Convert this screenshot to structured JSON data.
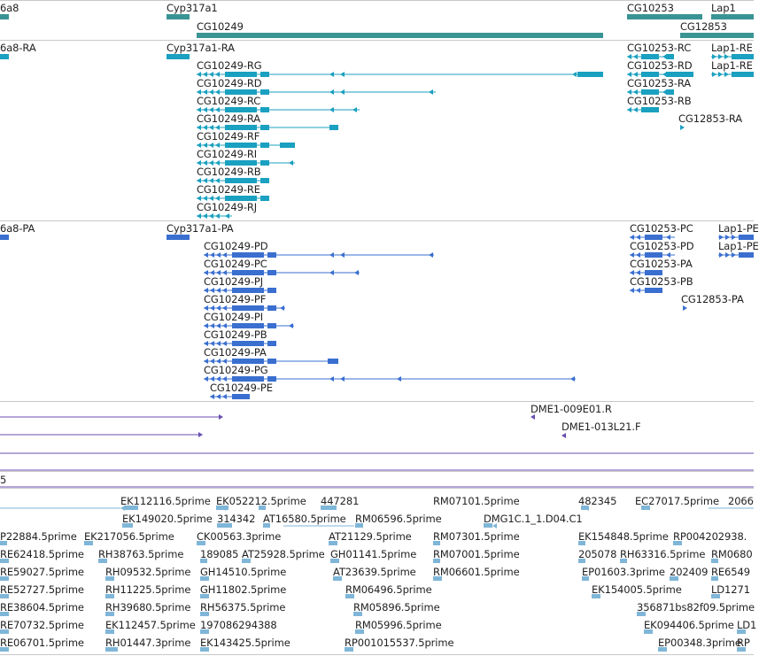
{
  "colors": {
    "gene": "#3a9494",
    "transcript": "#1aa0c0",
    "protein": "#3a6fd0",
    "probe": "#6a4fb0",
    "est": "#7fb6d8",
    "separator": "#c8c8c8"
  },
  "tracks": {
    "genes": {
      "labels": [
        {
          "id": "g-6a8",
          "text": "6a8"
        },
        {
          "id": "g-cyp317a1",
          "text": "Cyp317a1"
        },
        {
          "id": "g-cg10253",
          "text": "CG10253"
        },
        {
          "id": "g-lap1",
          "text": "Lap1"
        },
        {
          "id": "g-cg10249",
          "text": "CG10249"
        },
        {
          "id": "g-cg12853",
          "text": "CG12853"
        }
      ]
    },
    "transcripts": {
      "labels": [
        {
          "id": "t-6a8ra",
          "text": "6a8-RA"
        },
        {
          "id": "t-cyp317a1ra",
          "text": "Cyp317a1-RA"
        },
        {
          "id": "t-cg10253rc",
          "text": "CG10253-RC"
        },
        {
          "id": "t-lap1-1",
          "text": "Lap1-RE"
        },
        {
          "id": "t-cg10249rg",
          "text": "CG10249-RG"
        },
        {
          "id": "t-cg10253rd",
          "text": "CG10253-RD"
        },
        {
          "id": "t-lap1-2",
          "text": "Lap1-RE"
        },
        {
          "id": "t-cg10249rd",
          "text": "CG10249-RD"
        },
        {
          "id": "t-cg10253ra",
          "text": "CG10253-RA"
        },
        {
          "id": "t-cg10249rc",
          "text": "CG10249-RC"
        },
        {
          "id": "t-cg10253rb",
          "text": "CG10253-RB"
        },
        {
          "id": "t-cg10249ra",
          "text": "CG10249-RA"
        },
        {
          "id": "t-cg12853ra",
          "text": "CG12853-RA"
        },
        {
          "id": "t-cg10249rf",
          "text": "CG10249-RF"
        },
        {
          "id": "t-cg10249ri",
          "text": "CG10249-RI"
        },
        {
          "id": "t-cg10249rb",
          "text": "CG10249-RB"
        },
        {
          "id": "t-cg10249re",
          "text": "CG10249-RE"
        },
        {
          "id": "t-cg10249rj",
          "text": "CG10249-RJ"
        }
      ]
    },
    "proteins": {
      "labels": [
        {
          "id": "p-6a8pa",
          "text": "6a8-PA"
        },
        {
          "id": "p-cyp317a1pa",
          "text": "Cyp317a1-PA"
        },
        {
          "id": "p-cg10253pc",
          "text": "CG10253-PC"
        },
        {
          "id": "p-lap1-1",
          "text": "Lap1-PE"
        },
        {
          "id": "p-cg10249pd",
          "text": "CG10249-PD"
        },
        {
          "id": "p-cg10253pd",
          "text": "CG10253-PD"
        },
        {
          "id": "p-lap1-2",
          "text": "Lap1-PE"
        },
        {
          "id": "p-cg10249pc",
          "text": "CG10249-PC"
        },
        {
          "id": "p-cg10253pa",
          "text": "CG10253-PA"
        },
        {
          "id": "p-cg10249pj",
          "text": "CG10249-PJ"
        },
        {
          "id": "p-cg10253pb",
          "text": "CG10253-PB"
        },
        {
          "id": "p-cg10249pf",
          "text": "CG10249-PF"
        },
        {
          "id": "p-cg12853pa",
          "text": "CG12853-PA"
        },
        {
          "id": "p-cg10249pi",
          "text": "CG10249-PI"
        },
        {
          "id": "p-cg10249pb",
          "text": "CG10249-PB"
        },
        {
          "id": "p-cg10249pa",
          "text": "CG10249-PA"
        },
        {
          "id": "p-cg10249pg",
          "text": "CG10249-PG"
        },
        {
          "id": "p-cg10249pe",
          "text": "CG10249-PE"
        }
      ]
    },
    "probes": {
      "labels": [
        {
          "id": "pr-009e01",
          "text": "DME1-009E01.R"
        },
        {
          "id": "pr-013l21",
          "text": "DME1-013L21.F"
        }
      ]
    },
    "misc": {
      "labels": [
        {
          "id": "m-5",
          "text": "5"
        }
      ]
    },
    "ests": {
      "labels": [
        {
          "id": "e1",
          "text": "EK112116.5prime"
        },
        {
          "id": "e2",
          "text": "EK052212.5prime"
        },
        {
          "id": "e3",
          "text": "447281"
        },
        {
          "id": "e4",
          "text": "RM07101.5prime"
        },
        {
          "id": "e5",
          "text": "482345"
        },
        {
          "id": "e6",
          "text": "EC27017.5prime"
        },
        {
          "id": "e7",
          "text": "2066"
        },
        {
          "id": "e8",
          "text": "EK149020.5prime"
        },
        {
          "id": "e9",
          "text": "314342"
        },
        {
          "id": "e10",
          "text": "AT16580.5prime"
        },
        {
          "id": "e11",
          "text": "RM06596.5prime"
        },
        {
          "id": "e12",
          "text": "DMG1C.1_1.D04.C1"
        },
        {
          "id": "e13",
          "text": "P22884.5prime"
        },
        {
          "id": "e14",
          "text": "EK217056.5prime"
        },
        {
          "id": "e15",
          "text": "CK00563.3prime"
        },
        {
          "id": "e16",
          "text": "AT21129.5prime"
        },
        {
          "id": "e17",
          "text": "RM07301.5prime"
        },
        {
          "id": "e18",
          "text": "EK154848.5prime"
        },
        {
          "id": "e19",
          "text": "RP004202938."
        },
        {
          "id": "e20",
          "text": "RE62418.5prime"
        },
        {
          "id": "e21",
          "text": "RH38763.5prime"
        },
        {
          "id": "e22",
          "text": "189085"
        },
        {
          "id": "e23",
          "text": "AT25928.5prime"
        },
        {
          "id": "e24",
          "text": "GH01141.5prime"
        },
        {
          "id": "e25",
          "text": "RM07001.5prime"
        },
        {
          "id": "e26",
          "text": "205078"
        },
        {
          "id": "e27",
          "text": "RH63316.5prime"
        },
        {
          "id": "e28",
          "text": "RM0680"
        },
        {
          "id": "e29",
          "text": "RE59027.5prime"
        },
        {
          "id": "e30",
          "text": "RH09532.5prime"
        },
        {
          "id": "e31",
          "text": "GH14510.5prime"
        },
        {
          "id": "e32",
          "text": "AT23639.5prime"
        },
        {
          "id": "e33",
          "text": "RM06601.5prime"
        },
        {
          "id": "e34",
          "text": "EP01603.3prime"
        },
        {
          "id": "e35",
          "text": "202409"
        },
        {
          "id": "e36",
          "text": "RE6549"
        },
        {
          "id": "e37",
          "text": "RE52727.5prime"
        },
        {
          "id": "e38",
          "text": "RH11225.5prime"
        },
        {
          "id": "e39",
          "text": "GH11802.5prime"
        },
        {
          "id": "e40",
          "text": "RM06496.5prime"
        },
        {
          "id": "e41",
          "text": "EK154005.5prime"
        },
        {
          "id": "e42",
          "text": "LD1271"
        },
        {
          "id": "e43",
          "text": "RE38604.5prime"
        },
        {
          "id": "e44",
          "text": "RH39680.5prime"
        },
        {
          "id": "e45",
          "text": "RH56375.5prime"
        },
        {
          "id": "e46",
          "text": "RM05896.5prime"
        },
        {
          "id": "e47",
          "text": "356871bs82f09.5prime"
        },
        {
          "id": "e48",
          "text": "RE70732.5prime"
        },
        {
          "id": "e49",
          "text": "EK112457.5prime"
        },
        {
          "id": "e50",
          "text": "197086294388"
        },
        {
          "id": "e51",
          "text": "RM05996.5prime"
        },
        {
          "id": "e52",
          "text": "EK094406.5prime"
        },
        {
          "id": "e53",
          "text": "LD1"
        },
        {
          "id": "e54",
          "text": "RE06701.5prime"
        },
        {
          "id": "e55",
          "text": "RH01447.3prime"
        },
        {
          "id": "e56",
          "text": "EK143425.5prime"
        },
        {
          "id": "e57",
          "text": "RP001015537.5prime"
        },
        {
          "id": "e58",
          "text": "EP00348.3prime"
        },
        {
          "id": "e59",
          "text": "RP"
        }
      ]
    }
  }
}
